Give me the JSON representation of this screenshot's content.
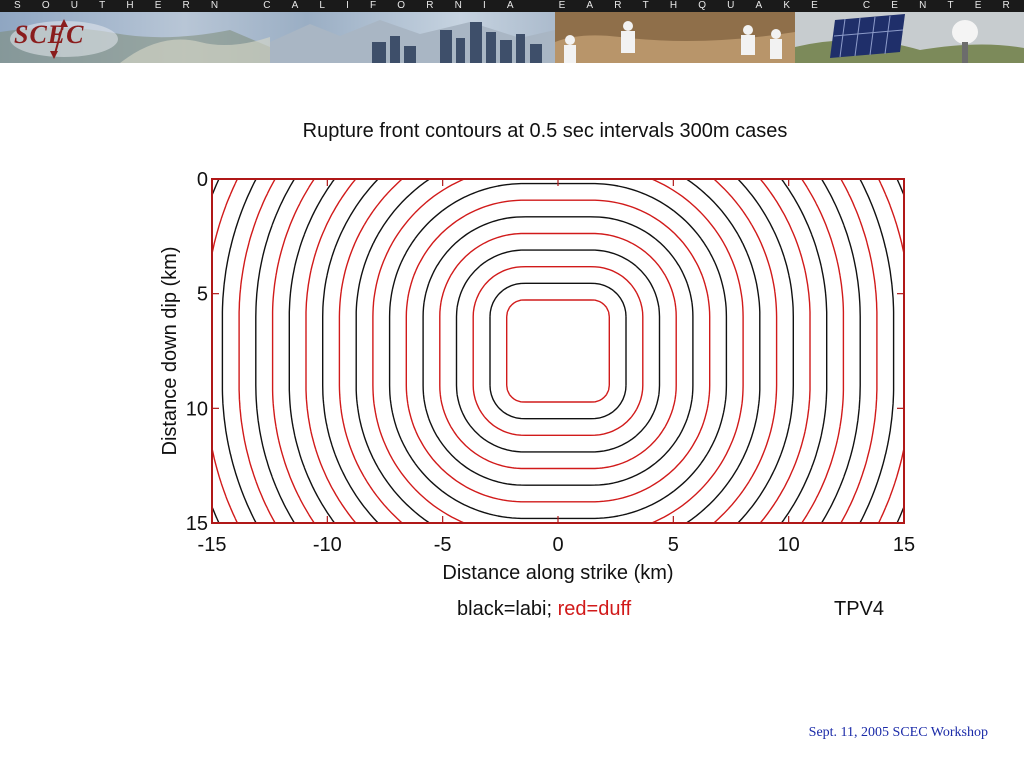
{
  "banner": {
    "letters": [
      "S",
      "O",
      "U",
      "T",
      "H",
      "E",
      "R",
      "N",
      "",
      "C",
      "A",
      "L",
      "I",
      "F",
      "O",
      "R",
      "N",
      "I",
      "A",
      "",
      "E",
      "A",
      "R",
      "T",
      "H",
      "Q",
      "U",
      "A",
      "K",
      "E",
      "",
      "C",
      "E",
      "N",
      "T",
      "E",
      "R"
    ],
    "logo_text": "SCEC",
    "logo-icon": "scec-logo-icon",
    "colors": {
      "strip": "#1a1a1a",
      "logo": "#8a1d1d"
    }
  },
  "chart_data": {
    "type": "contour",
    "title": "Rupture front contours at 0.5 sec intervals   300m cases",
    "xlabel": "Distance along strike (km)",
    "ylabel": "Distance down dip (km)",
    "xlim": [
      -15,
      15
    ],
    "ylim": [
      0,
      15
    ],
    "y_inverted": true,
    "x_ticks": [
      -15,
      -10,
      -5,
      0,
      5,
      10,
      15
    ],
    "y_ticks": [
      0,
      5,
      10,
      15
    ],
    "hypocenter": [
      0,
      7.5
    ],
    "nucleation_half_size_km": 1.5,
    "contour_interval_s": 0.5,
    "approx_rupture_speed_km_s": 2.9,
    "series": [
      {
        "name": "labi",
        "color": "#111111"
      },
      {
        "name": "duff",
        "color": "#d11a1a"
      }
    ]
  },
  "legend": {
    "black_label": "black=labi;",
    "red_label": "red=duff"
  },
  "case_label": "TPV4",
  "footer": "Sept. 11, 2005 SCEC Workshop"
}
